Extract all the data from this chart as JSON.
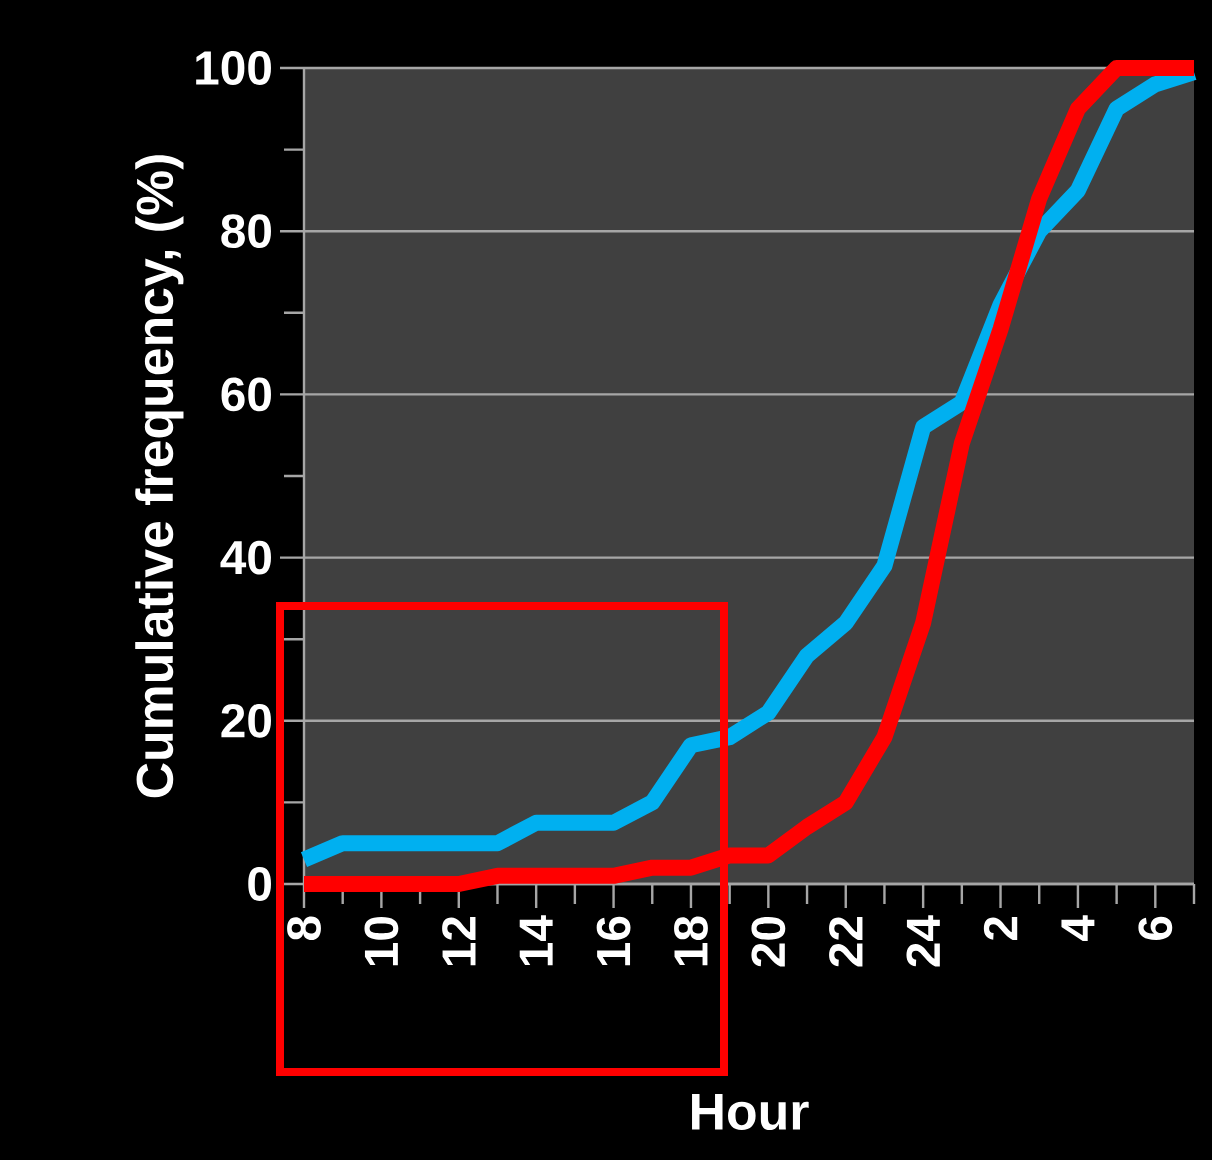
{
  "chart_data": {
    "type": "line",
    "xlabel": "Hour",
    "ylabel": "Cumulative frequency, (%)",
    "categories": [
      "8",
      null,
      "10",
      null,
      "12",
      null,
      "14",
      null,
      "16",
      null,
      "18",
      null,
      "20",
      null,
      "22",
      null,
      "24",
      null,
      "2",
      null,
      "4",
      null,
      "6",
      null
    ],
    "series": [
      {
        "color": "#00b0f0",
        "values": [
          3,
          5,
          5,
          5,
          5,
          5,
          7.5,
          7.5,
          7.5,
          10,
          17,
          18,
          21,
          28,
          32,
          39,
          56,
          59,
          71,
          80,
          85,
          95,
          98,
          99.5
        ]
      },
      {
        "color": "#ff0000",
        "values": [
          0,
          0,
          0,
          0,
          0,
          1,
          1,
          1,
          1,
          2,
          2,
          3.5,
          3.5,
          7,
          10,
          18,
          32,
          54,
          68,
          84,
          95,
          100,
          100,
          100
        ]
      }
    ],
    "ylim": [
      0,
      100
    ],
    "yticks": [
      0,
      {
        "value": 10,
        "label": null
      },
      20,
      {
        "value": 30,
        "label": null
      },
      40,
      {
        "value": 50,
        "label": null
      },
      60,
      {
        "value": 70,
        "label": null
      },
      80,
      {
        "value": 90,
        "label": null
      },
      100
    ],
    "grid": "y",
    "marker": "none",
    "line_style": "solid"
  }
}
